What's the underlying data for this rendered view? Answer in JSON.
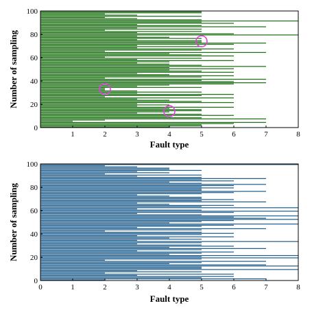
{
  "chart_data": [
    {
      "type": "bar",
      "orientation": "horizontal",
      "xlabel": "Fault type",
      "ylabel": "Number of sampling",
      "xlim": [
        0,
        8
      ],
      "ylim": [
        0,
        100
      ],
      "xticks": [
        "1",
        "2",
        "3",
        "4",
        "5",
        "6",
        "7",
        "8"
      ],
      "yticks": [
        "0",
        "20",
        "40",
        "60",
        "80",
        "100"
      ],
      "color": "#1a6e12",
      "grid": false,
      "annotations": [
        {
          "shape": "circle",
          "color": "#e040e0",
          "x": 2,
          "y": 33
        },
        {
          "shape": "circle",
          "color": "#e040e0",
          "x": 4,
          "y": 14
        },
        {
          "shape": "circle",
          "color": "#e040e0",
          "x": 5,
          "y": 74
        }
      ],
      "bars": [
        [
          0,
          4
        ],
        [
          1,
          5
        ],
        [
          2,
          5
        ],
        [
          3,
          6
        ],
        [
          4,
          7
        ],
        [
          5,
          1
        ],
        [
          6,
          2
        ],
        [
          7,
          7
        ],
        [
          8,
          5
        ],
        [
          9,
          4
        ],
        [
          10,
          6
        ],
        [
          11,
          5
        ],
        [
          12,
          3
        ],
        [
          13,
          4
        ],
        [
          14,
          5
        ],
        [
          15,
          5
        ],
        [
          16,
          4
        ],
        [
          17,
          6
        ],
        [
          18,
          3
        ],
        [
          19,
          4
        ],
        [
          20,
          3
        ],
        [
          21,
          6
        ],
        [
          22,
          5
        ],
        [
          23,
          4
        ],
        [
          24,
          3
        ],
        [
          25,
          6
        ],
        [
          26,
          2
        ],
        [
          27,
          5
        ],
        [
          28,
          6
        ],
        [
          29,
          3
        ],
        [
          30,
          5
        ],
        [
          31,
          3
        ],
        [
          32,
          2
        ],
        [
          33,
          2
        ],
        [
          34,
          5
        ],
        [
          35,
          3
        ],
        [
          36,
          4
        ],
        [
          37,
          6
        ],
        [
          38,
          7
        ],
        [
          39,
          6
        ],
        [
          40,
          5
        ],
        [
          41,
          7
        ],
        [
          42,
          2
        ],
        [
          43,
          5
        ],
        [
          44,
          6
        ],
        [
          45,
          4
        ],
        [
          46,
          3
        ],
        [
          47,
          6
        ],
        [
          48,
          5
        ],
        [
          49,
          4
        ],
        [
          50,
          6
        ],
        [
          51,
          4
        ],
        [
          52,
          7
        ],
        [
          53,
          5
        ],
        [
          54,
          4
        ],
        [
          55,
          3
        ],
        [
          56,
          4
        ],
        [
          57,
          6
        ],
        [
          58,
          3
        ],
        [
          59,
          5
        ],
        [
          60,
          2
        ],
        [
          61,
          6
        ],
        [
          62,
          5
        ],
        [
          63,
          4
        ],
        [
          64,
          7
        ],
        [
          65,
          2
        ],
        [
          66,
          5
        ],
        [
          67,
          6
        ],
        [
          68,
          3
        ],
        [
          69,
          5
        ],
        [
          70,
          3
        ],
        [
          71,
          6
        ],
        [
          72,
          7
        ],
        [
          73,
          5
        ],
        [
          74,
          5
        ],
        [
          75,
          3
        ],
        [
          76,
          5
        ],
        [
          77,
          4
        ],
        [
          78,
          3
        ],
        [
          79,
          8
        ],
        [
          80,
          6
        ],
        [
          81,
          3
        ],
        [
          82,
          5
        ],
        [
          83,
          2
        ],
        [
          84,
          5
        ],
        [
          85,
          3
        ],
        [
          86,
          7
        ],
        [
          87,
          5
        ],
        [
          88,
          3
        ],
        [
          89,
          6
        ],
        [
          90,
          5
        ],
        [
          91,
          8
        ],
        [
          92,
          5
        ],
        [
          93,
          3
        ],
        [
          94,
          2
        ],
        [
          95,
          5
        ],
        [
          96,
          3
        ],
        [
          97,
          2
        ],
        [
          98,
          5
        ],
        [
          99,
          5
        ]
      ]
    },
    {
      "type": "bar",
      "orientation": "horizontal",
      "xlabel": "Fault type",
      "ylabel": "Number of sampling",
      "xlim": [
        0,
        8
      ],
      "ylim": [
        0,
        100
      ],
      "xticks": [
        "0",
        "1",
        "2",
        "3",
        "4",
        "5",
        "6",
        "7",
        "8"
      ],
      "yticks": [
        "0",
        "20",
        "40",
        "60",
        "80",
        "100"
      ],
      "color": "#1f5d8c",
      "grid": false,
      "bars": [
        [
          0,
          2
        ],
        [
          1,
          7
        ],
        [
          2,
          5
        ],
        [
          3,
          6
        ],
        [
          4,
          3
        ],
        [
          5,
          6
        ],
        [
          6,
          2
        ],
        [
          7,
          5
        ],
        [
          8,
          3
        ],
        [
          9,
          8
        ],
        [
          10,
          5
        ],
        [
          11,
          5
        ],
        [
          12,
          8
        ],
        [
          13,
          7
        ],
        [
          14,
          4
        ],
        [
          15,
          5
        ],
        [
          16,
          7
        ],
        [
          17,
          2
        ],
        [
          18,
          5
        ],
        [
          19,
          8
        ],
        [
          20,
          5
        ],
        [
          21,
          8
        ],
        [
          22,
          4
        ],
        [
          23,
          5
        ],
        [
          24,
          6
        ],
        [
          25,
          3
        ],
        [
          26,
          5
        ],
        [
          27,
          7
        ],
        [
          28,
          4
        ],
        [
          29,
          6
        ],
        [
          30,
          5
        ],
        [
          31,
          3
        ],
        [
          32,
          5
        ],
        [
          33,
          8
        ],
        [
          34,
          3
        ],
        [
          35,
          5
        ],
        [
          36,
          4
        ],
        [
          37,
          6
        ],
        [
          38,
          3
        ],
        [
          39,
          5
        ],
        [
          40,
          6
        ],
        [
          41,
          5
        ],
        [
          42,
          2
        ],
        [
          43,
          5
        ],
        [
          44,
          7
        ],
        [
          45,
          3
        ],
        [
          46,
          5
        ],
        [
          47,
          6
        ],
        [
          48,
          8
        ],
        [
          49,
          4
        ],
        [
          50,
          5
        ],
        [
          51,
          6
        ],
        [
          52,
          8
        ],
        [
          53,
          7
        ],
        [
          54,
          6
        ],
        [
          55,
          8
        ],
        [
          56,
          5
        ],
        [
          57,
          3
        ],
        [
          58,
          6
        ],
        [
          59,
          8
        ],
        [
          60,
          5
        ],
        [
          61,
          3
        ],
        [
          62,
          8
        ],
        [
          63,
          5
        ],
        [
          64,
          6
        ],
        [
          65,
          4
        ],
        [
          66,
          3
        ],
        [
          67,
          7
        ],
        [
          68,
          5
        ],
        [
          69,
          6
        ],
        [
          70,
          5
        ],
        [
          71,
          5
        ],
        [
          72,
          4
        ],
        [
          73,
          3
        ],
        [
          74,
          5
        ],
        [
          75,
          6
        ],
        [
          76,
          7
        ],
        [
          77,
          5
        ],
        [
          78,
          5
        ],
        [
          79,
          6
        ],
        [
          80,
          5
        ],
        [
          81,
          6
        ],
        [
          82,
          7
        ],
        [
          83,
          5
        ],
        [
          84,
          4
        ],
        [
          85,
          6
        ],
        [
          86,
          5
        ],
        [
          87,
          7
        ],
        [
          88,
          5
        ],
        [
          89,
          3
        ],
        [
          90,
          5
        ],
        [
          91,
          2
        ],
        [
          92,
          4
        ],
        [
          93,
          3
        ],
        [
          94,
          5
        ],
        [
          95,
          4
        ],
        [
          96,
          4
        ],
        [
          97,
          3
        ],
        [
          98,
          2
        ],
        [
          99,
          8
        ]
      ]
    }
  ]
}
